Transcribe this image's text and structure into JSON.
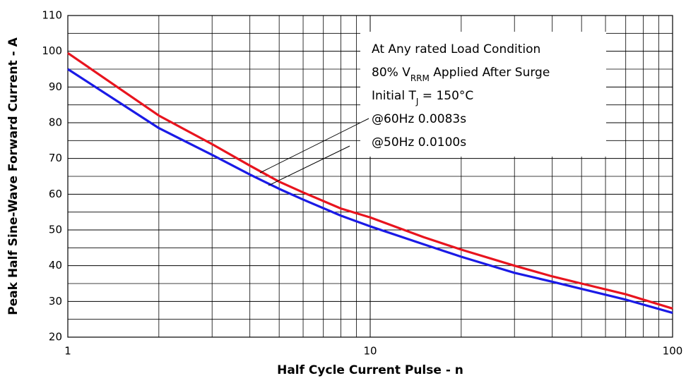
{
  "chart_data": {
    "type": "line",
    "xlabel": "Half Cycle Current Pulse - n",
    "ylabel": "Peak Half Sine-Wave Forward Current - A",
    "x": [
      1,
      2,
      3,
      4,
      5,
      6,
      8,
      10,
      15,
      20,
      30,
      40,
      50,
      70,
      100
    ],
    "series": [
      {
        "name": "@60Hz 0.0083s",
        "color": "#e8141e",
        "values": [
          99.5,
          82,
          74,
          68,
          63.5,
          60.5,
          56,
          53.5,
          48,
          44.5,
          40,
          37,
          35,
          32,
          28
        ]
      },
      {
        "name": "@50Hz 0.0100s",
        "color": "#1a1ae6",
        "values": [
          95,
          78.5,
          71,
          65.5,
          61.5,
          58.5,
          54,
          51,
          46,
          42.5,
          38,
          35.5,
          33.5,
          30.5,
          26.8
        ]
      }
    ],
    "xlim": [
      1,
      100
    ],
    "xticks": [
      1,
      10,
      100
    ],
    "xlog": true,
    "ylim": [
      20,
      110
    ],
    "yticks": [
      20,
      30,
      40,
      50,
      60,
      70,
      80,
      90,
      100,
      110
    ],
    "grid": true,
    "annotations": [
      [
        "At Any rated Load Condition"
      ],
      [
        "80% V",
        "RRM",
        " Applied After Surge"
      ],
      [
        "Initial T",
        "J",
        " = 150°C"
      ]
    ]
  }
}
